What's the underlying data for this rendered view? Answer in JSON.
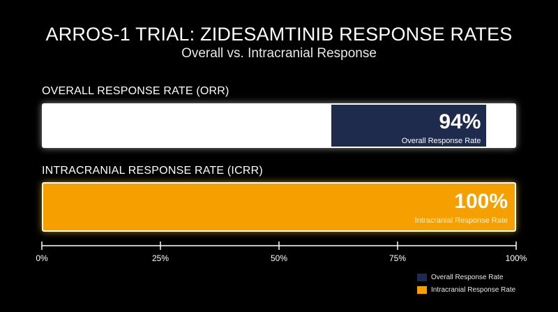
{
  "title": "ARROS-1 TRIAL: ZIDESAMTINIB RESPONSE RATES",
  "subtitle": "Overall vs. Intracranial Response",
  "colors": {
    "orr": "#1f2b4d",
    "icrr": "#f5a000",
    "track": "#ffffff"
  },
  "chart_data": {
    "type": "bar",
    "orientation": "horizontal",
    "title": "ARROS-1 TRIAL: ZIDESAMTINIB RESPONSE RATES",
    "subtitle": "Overall vs. Intracranial Response",
    "xlim": [
      0,
      100
    ],
    "ticks": [
      "0%",
      "25%",
      "50%",
      "75%",
      "100%"
    ],
    "legend_position": "bottom-right",
    "series": [
      {
        "name": "Overall Response Rate",
        "category": "OVERALL RESPONSE RATE (ORR)",
        "value": 94,
        "value_label": "94%",
        "color": "#1f2b4d"
      },
      {
        "name": "Intracranial Response Rate",
        "category": "INTRACRANIAL RESPONSE RATE (ICRR)",
        "value": 100,
        "value_label": "100%",
        "color": "#f5a000"
      }
    ]
  }
}
